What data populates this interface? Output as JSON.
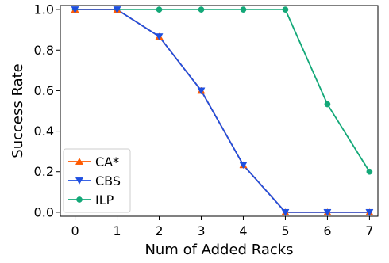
{
  "chart_data": {
    "type": "line",
    "xlabel": "Num of Added Racks",
    "ylabel": "Success Rate",
    "x": [
      0,
      1,
      2,
      3,
      4,
      5,
      6,
      7
    ],
    "x_ticks": [
      "0",
      "1",
      "2",
      "3",
      "4",
      "5",
      "6",
      "7"
    ],
    "y_ticks": [
      "0.0",
      "0.2",
      "0.4",
      "0.6",
      "0.8",
      "1.0"
    ],
    "xlim": [
      -0.35,
      7.2
    ],
    "ylim": [
      -0.02,
      1.02
    ],
    "grid": false,
    "legend_position": "bottom-left",
    "series": [
      {
        "name": "CA*",
        "color": "#ff5a00",
        "marker": "triangle-up",
        "values": [
          1.0,
          1.0,
          0.867,
          0.6,
          0.233,
          0.0,
          0.0,
          0.0
        ]
      },
      {
        "name": "CBS",
        "color": "#1f4fe0",
        "marker": "triangle-down",
        "values": [
          1.0,
          1.0,
          0.867,
          0.6,
          0.233,
          0.0,
          0.0,
          0.0
        ]
      },
      {
        "name": "ILP",
        "color": "#13a878",
        "marker": "circle",
        "values": [
          1.0,
          1.0,
          1.0,
          1.0,
          1.0,
          1.0,
          0.533,
          0.2
        ]
      }
    ]
  }
}
